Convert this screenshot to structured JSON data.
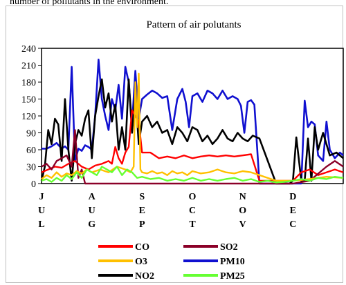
{
  "caption_fragment": "number of pollutants in the environment.",
  "chart_data": {
    "type": "line",
    "title": "Pattern of air polutants",
    "xlabel": "",
    "ylabel": "",
    "ylim": [
      0,
      240
    ],
    "yticks": [
      0,
      30,
      60,
      90,
      120,
      150,
      180,
      210,
      240
    ],
    "grid": false,
    "legend_position": "bottom",
    "month_labels": [
      {
        "letters": [
          "J",
          "U",
          "L"
        ]
      },
      {
        "letters": [
          "A",
          "U",
          "G"
        ]
      },
      {
        "letters": [
          "S",
          "E",
          "P"
        ]
      },
      {
        "letters": [
          "O",
          "C",
          "T"
        ]
      },
      {
        "letters": [
          "N",
          "O",
          "V"
        ]
      },
      {
        "letters": [
          "D",
          "E",
          "C"
        ]
      }
    ],
    "x_domain": [
      0,
      180
    ],
    "month_positions": [
      0,
      30,
      60,
      90,
      120,
      150
    ],
    "series": [
      {
        "name": "PM10",
        "color": "#1010d0",
        "x": [
          0,
          3,
          6,
          9,
          12,
          14,
          16,
          18,
          20,
          22,
          24,
          26,
          28,
          30,
          32,
          34,
          36,
          38,
          40,
          42,
          44,
          46,
          48,
          50,
          52,
          54,
          56,
          58,
          60,
          63,
          66,
          69,
          72,
          75,
          78,
          81,
          84,
          86,
          88,
          90,
          93,
          96,
          99,
          102,
          105,
          108,
          111,
          114,
          117,
          119,
          121,
          123,
          125,
          127,
          130,
          140,
          150,
          155,
          157,
          159,
          161,
          163,
          165,
          168,
          170,
          172,
          175,
          178,
          180
        ],
        "values": [
          62,
          62,
          66,
          72,
          62,
          66,
          60,
          207,
          40,
          62,
          58,
          68,
          65,
          60,
          120,
          220,
          150,
          120,
          95,
          150,
          130,
          175,
          115,
          207,
          180,
          105,
          200,
          115,
          150,
          158,
          165,
          160,
          152,
          155,
          95,
          150,
          168,
          145,
          100,
          155,
          160,
          145,
          165,
          160,
          150,
          165,
          150,
          155,
          150,
          138,
          90,
          145,
          148,
          140,
          0,
          0,
          0,
          0,
          147,
          100,
          110,
          105,
          50,
          40,
          110,
          60,
          45,
          55,
          50
        ]
      },
      {
        "name": "NO2",
        "color": "#000000",
        "x": [
          0,
          2,
          4,
          6,
          8,
          10,
          12,
          14,
          16,
          18,
          20,
          22,
          24,
          26,
          28,
          30,
          32,
          34,
          36,
          38,
          40,
          42,
          44,
          46,
          48,
          50,
          52,
          54,
          56,
          58,
          60,
          63,
          66,
          69,
          72,
          75,
          78,
          81,
          84,
          87,
          90,
          93,
          96,
          99,
          102,
          105,
          108,
          111,
          114,
          117,
          120,
          123,
          126,
          130,
          140,
          148,
          150,
          152,
          155,
          157,
          159,
          161,
          163,
          165,
          168,
          172,
          176,
          180
        ],
        "values": [
          5,
          30,
          95,
          70,
          115,
          105,
          40,
          150,
          60,
          5,
          70,
          95,
          85,
          115,
          130,
          45,
          120,
          155,
          185,
          135,
          160,
          110,
          140,
          60,
          100,
          60,
          185,
          90,
          160,
          70,
          110,
          120,
          100,
          110,
          90,
          95,
          70,
          100,
          90,
          75,
          100,
          95,
          75,
          85,
          70,
          80,
          95,
          80,
          75,
          90,
          80,
          75,
          85,
          80,
          0,
          0,
          5,
          82,
          5,
          5,
          80,
          5,
          100,
          60,
          90,
          50,
          55,
          45
        ]
      },
      {
        "name": "CO",
        "color": "#ff0000",
        "x": [
          0,
          4,
          8,
          12,
          16,
          20,
          24,
          28,
          32,
          36,
          40,
          42,
          44,
          46,
          48,
          50,
          52,
          54,
          56,
          58,
          60,
          65,
          70,
          75,
          80,
          85,
          90,
          95,
          100,
          105,
          110,
          115,
          120,
          125,
          130,
          140,
          150,
          155,
          160,
          165,
          170,
          175,
          180
        ],
        "values": [
          20,
          25,
          30,
          28,
          35,
          40,
          30,
          25,
          32,
          35,
          40,
          35,
          65,
          45,
          35,
          55,
          65,
          130,
          120,
          110,
          55,
          55,
          45,
          48,
          45,
          50,
          45,
          48,
          50,
          48,
          50,
          48,
          50,
          52,
          5,
          5,
          5,
          20,
          25,
          15,
          20,
          25,
          20
        ]
      },
      {
        "name": "SO2",
        "color": "#8b0028",
        "x": [
          0,
          3,
          6,
          9,
          12,
          15,
          18,
          20,
          22,
          24,
          26,
          30,
          35,
          40,
          50,
          60,
          80,
          100,
          120,
          130,
          140,
          150,
          160,
          170,
          175,
          180
        ],
        "values": [
          30,
          35,
          25,
          40,
          45,
          50,
          30,
          95,
          10,
          25,
          0,
          0,
          0,
          0,
          0,
          0,
          0,
          0,
          0,
          0,
          0,
          0,
          5,
          30,
          40,
          30
        ]
      },
      {
        "name": "O3",
        "color": "#ffc000",
        "x": [
          0,
          3,
          6,
          9,
          12,
          15,
          18,
          21,
          24,
          27,
          30,
          35,
          40,
          45,
          50,
          53,
          55,
          56,
          57,
          58,
          59,
          60,
          63,
          66,
          69,
          72,
          75,
          78,
          81,
          84,
          87,
          90,
          95,
          100,
          105,
          110,
          115,
          120,
          125,
          130,
          140,
          150,
          160,
          170,
          180
        ],
        "values": [
          8,
          15,
          10,
          20,
          12,
          18,
          15,
          22,
          18,
          25,
          20,
          25,
          20,
          30,
          25,
          20,
          30,
          180,
          100,
          195,
          25,
          20,
          18,
          22,
          18,
          20,
          15,
          22,
          18,
          20,
          15,
          22,
          18,
          20,
          25,
          20,
          18,
          22,
          20,
          15,
          5,
          5,
          8,
          12,
          10
        ]
      },
      {
        "name": "PM25",
        "color": "#66ff33",
        "x": [
          0,
          3,
          6,
          9,
          12,
          15,
          18,
          21,
          24,
          27,
          30,
          33,
          36,
          39,
          42,
          45,
          48,
          51,
          54,
          57,
          60,
          65,
          70,
          75,
          80,
          85,
          90,
          95,
          100,
          105,
          110,
          115,
          120,
          125,
          130,
          135,
          140,
          145,
          150,
          155,
          160,
          165,
          170,
          175,
          180
        ],
        "values": [
          5,
          8,
          3,
          10,
          5,
          15,
          8,
          20,
          10,
          25,
          20,
          15,
          30,
          25,
          20,
          30,
          15,
          25,
          20,
          10,
          12,
          8,
          10,
          5,
          8,
          5,
          10,
          5,
          8,
          5,
          8,
          10,
          5,
          8,
          3,
          5,
          2,
          3,
          5,
          8,
          5,
          10,
          8,
          12,
          10
        ]
      }
    ],
    "legend": [
      {
        "name": "CO",
        "color": "#ff0000"
      },
      {
        "name": "SO2",
        "color": "#8b0028"
      },
      {
        "name": "O3",
        "color": "#ffc000"
      },
      {
        "name": "PM10",
        "color": "#1010d0"
      },
      {
        "name": "NO2",
        "color": "#000000"
      },
      {
        "name": "PM25",
        "color": "#66ff33"
      }
    ]
  }
}
